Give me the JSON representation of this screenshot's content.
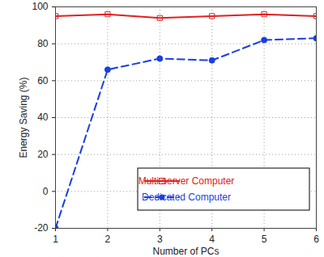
{
  "chart_data": {
    "type": "line",
    "x_label": "Number of PCs",
    "y_label": "Energy Saving (%)",
    "x": [
      1,
      2,
      3,
      4,
      5,
      6
    ],
    "series": [
      {
        "name": "Multi-server Computer",
        "color": "#e02020",
        "marker": "square",
        "line_style": "solid",
        "values": [
          95,
          96,
          94,
          95,
          96,
          95
        ]
      },
      {
        "name": "Dedicated Computer",
        "color": "#1a3fe0",
        "marker": "circle",
        "line_style": "dashed",
        "values": [
          -20,
          66,
          72,
          71,
          82,
          83
        ]
      }
    ],
    "xlim": [
      1,
      6
    ],
    "xticks": [
      1,
      2,
      3,
      4,
      5,
      6
    ],
    "ylim": [
      -20,
      100
    ],
    "yticks": [
      -20,
      0,
      20,
      40,
      60,
      80,
      100
    ],
    "grid": true,
    "legend": "lower right"
  }
}
